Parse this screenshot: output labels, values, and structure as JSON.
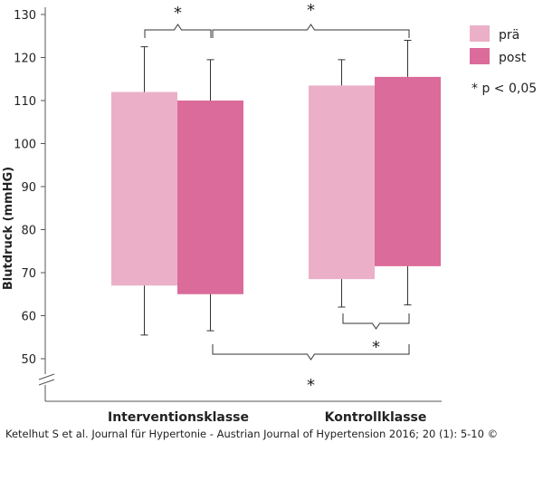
{
  "chart_data": {
    "type": "box",
    "ylabel": "Blutdruck (mmHG)",
    "ylim": [
      50,
      130
    ],
    "yticks": [
      50,
      60,
      70,
      80,
      90,
      100,
      110,
      120,
      130
    ],
    "axis_break": true,
    "categories": [
      "Interventionsklasse",
      "Kontrollklasse"
    ],
    "series": [
      {
        "name": "prä",
        "color": "#ebb0c8",
        "boxes": [
          {
            "category": "Interventionsklasse",
            "low": 67,
            "high": 112,
            "whisker_low": 55.5,
            "whisker_high": 122.5
          },
          {
            "category": "Kontrollklasse",
            "low": 68.5,
            "high": 113.5,
            "whisker_low": 62,
            "whisker_high": 119.5
          }
        ]
      },
      {
        "name": "post",
        "color": "#db6b9a",
        "boxes": [
          {
            "category": "Interventionsklasse",
            "low": 65,
            "high": 110,
            "whisker_low": 56.5,
            "whisker_high": 119.5
          },
          {
            "category": "Kontrollklasse",
            "low": 71.5,
            "high": 115.5,
            "whisker_low": 62.5,
            "whisker_high": 124
          }
        ]
      }
    ],
    "legend": {
      "position": "top-right",
      "note": "* p < 0,05"
    },
    "annotations": [
      {
        "label": "*",
        "between": "Interventionsklasse prä vs post",
        "side": "top"
      },
      {
        "label": "*",
        "between": "Interventionsklasse post vs Kontrollklasse post",
        "side": "top"
      },
      {
        "label": "*",
        "between": "Kontrollklasse prä vs post",
        "side": "bottom"
      },
      {
        "label": "*",
        "between": "Interventionsklasse post vs Kontrollklasse post",
        "side": "bottom"
      }
    ]
  },
  "credit": "Ketelhut S et al. Journal für Hypertonie - Austrian Journal of Hypertension 2016; 20 (1): 5-10 ©"
}
